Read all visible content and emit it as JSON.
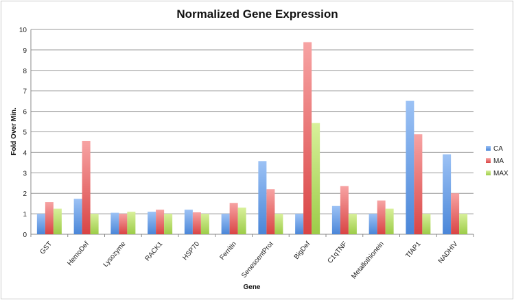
{
  "chart_data": {
    "type": "bar",
    "title": "Normalized Gene Expression",
    "xlabel": "Gene",
    "ylabel": "Fold Over Min.",
    "ylim": [
      0,
      10
    ],
    "yticks": [
      "0",
      "1",
      "2",
      "3",
      "4",
      "5",
      "6",
      "7",
      "8",
      "9",
      "10"
    ],
    "grid": true,
    "legend_position": "right",
    "categories": [
      "GST",
      "HemoDef",
      "Lysozyme",
      "RACK1",
      "HSP70",
      "Ferritin",
      "SenescentProt",
      "BigDef",
      "C1qTNF",
      "Metallothionein",
      "TfAP1",
      "NADHIV"
    ],
    "series": [
      {
        "name": "CA",
        "color": "#4a86d8",
        "values": [
          1,
          1.73,
          1.05,
          1.1,
          1.2,
          1,
          3.57,
          1,
          1.38,
          1,
          6.52,
          3.9
        ]
      },
      {
        "name": "MA",
        "color": "#d94444",
        "values": [
          1.57,
          4.55,
          1,
          1.2,
          1.07,
          1.53,
          2.2,
          9.38,
          2.35,
          1.65,
          4.88,
          2
        ]
      },
      {
        "name": "MAX",
        "color": "#9ccc48",
        "values": [
          1.25,
          1,
          1.1,
          1,
          1,
          1.3,
          1,
          5.43,
          1,
          1.25,
          1,
          1
        ]
      }
    ]
  }
}
